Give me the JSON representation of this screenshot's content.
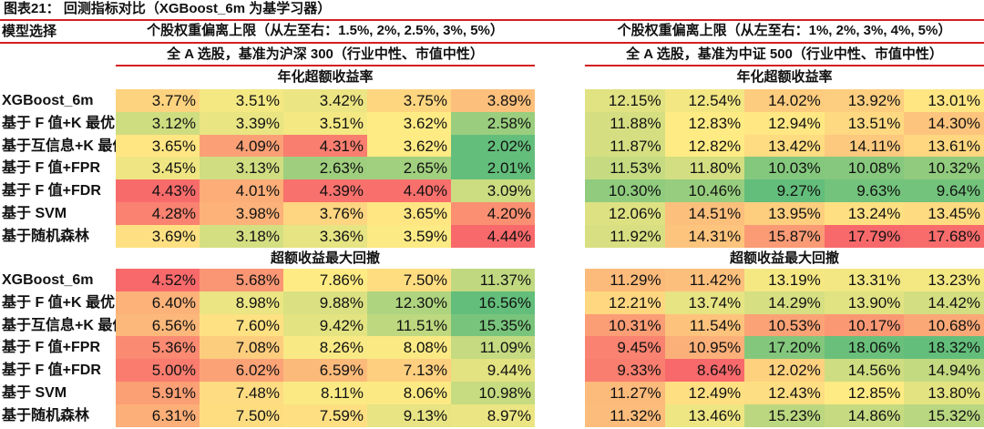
{
  "title": "图表21：  回测指标对比（XGBoost_6m 为基学习器）",
  "corner_label": "模型选择",
  "rows": [
    "XGBoost_6m",
    "基于 F 值+K 最优",
    "基于互信息+K 最优",
    "基于 F 值+FPR",
    "基于 F 值+FDR",
    "基于 SVM",
    "基于随机森林"
  ],
  "color_scale": {
    "low_good": "#63BE7B",
    "mid": "#FFEB84",
    "high_bad": "#F8696B"
  },
  "panels": [
    {
      "weight_header": "个股权重偏离上限（从左至右：1.5%, 2%, 2.5%, 3%, 5%）",
      "benchmark_header": "全 A 选股，基准为沪深 300（行业中性、市值中性）",
      "sections": [
        {
          "title": "年化超额收益率",
          "low_color": "green",
          "values": [
            [
              "3.77%",
              "3.51%",
              "3.42%",
              "3.75%",
              "3.89%"
            ],
            [
              "3.12%",
              "3.39%",
              "3.51%",
              "3.62%",
              "2.58%"
            ],
            [
              "3.65%",
              "4.09%",
              "4.31%",
              "3.62%",
              "2.02%"
            ],
            [
              "3.45%",
              "3.13%",
              "2.63%",
              "2.65%",
              "2.01%"
            ],
            [
              "4.43%",
              "4.01%",
              "4.39%",
              "4.40%",
              "3.09%"
            ],
            [
              "4.28%",
              "3.98%",
              "3.76%",
              "3.65%",
              "4.20%"
            ],
            [
              "3.69%",
              "3.18%",
              "3.36%",
              "3.59%",
              "4.44%"
            ]
          ]
        },
        {
          "title": "超额收益最大回撤",
          "low_color": "red",
          "values": [
            [
              "4.52%",
              "5.68%",
              "7.86%",
              "7.50%",
              "11.37%"
            ],
            [
              "6.40%",
              "8.98%",
              "9.88%",
              "12.30%",
              "16.56%"
            ],
            [
              "6.56%",
              "7.60%",
              "9.42%",
              "11.51%",
              "15.35%"
            ],
            [
              "5.36%",
              "7.08%",
              "8.26%",
              "8.08%",
              "11.09%"
            ],
            [
              "5.00%",
              "6.02%",
              "6.59%",
              "7.13%",
              "9.44%"
            ],
            [
              "5.91%",
              "7.48%",
              "8.11%",
              "8.06%",
              "10.98%"
            ],
            [
              "6.31%",
              "7.50%",
              "7.59%",
              "9.13%",
              "8.97%"
            ]
          ]
        }
      ]
    },
    {
      "weight_header": "个股权重偏离上限（从左至右：1%, 2%, 3%, 4%, 5%）",
      "benchmark_header": "全 A 选股，基准为中证 500（行业中性、市值中性）",
      "sections": [
        {
          "title": "年化超额收益率",
          "low_color": "green",
          "values": [
            [
              "12.15%",
              "12.54%",
              "14.02%",
              "13.92%",
              "13.01%"
            ],
            [
              "11.88%",
              "12.83%",
              "12.94%",
              "13.51%",
              "14.30%"
            ],
            [
              "11.87%",
              "12.82%",
              "13.42%",
              "14.11%",
              "13.61%"
            ],
            [
              "11.53%",
              "11.80%",
              "10.03%",
              "10.08%",
              "10.32%"
            ],
            [
              "10.30%",
              "10.46%",
              "9.27%",
              "9.63%",
              "9.64%"
            ],
            [
              "12.06%",
              "14.51%",
              "13.95%",
              "13.24%",
              "13.45%"
            ],
            [
              "11.92%",
              "14.31%",
              "15.87%",
              "17.79%",
              "17.68%"
            ]
          ]
        },
        {
          "title": "超额收益最大回撤",
          "low_color": "red",
          "values": [
            [
              "11.29%",
              "11.42%",
              "13.19%",
              "13.31%",
              "13.23%"
            ],
            [
              "12.21%",
              "13.74%",
              "14.29%",
              "13.90%",
              "14.42%"
            ],
            [
              "10.31%",
              "11.54%",
              "10.53%",
              "10.17%",
              "10.68%"
            ],
            [
              "9.45%",
              "10.95%",
              "17.20%",
              "18.06%",
              "18.32%"
            ],
            [
              "9.33%",
              "8.64%",
              "12.02%",
              "14.56%",
              "14.94%"
            ],
            [
              "11.27%",
              "12.49%",
              "12.43%",
              "12.85%",
              "13.80%"
            ],
            [
              "11.32%",
              "13.46%",
              "15.23%",
              "14.86%",
              "15.32%"
            ]
          ]
        }
      ]
    }
  ]
}
